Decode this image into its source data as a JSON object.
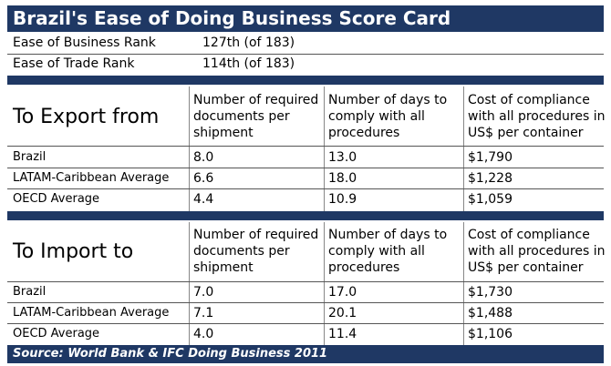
{
  "title": "Brazil's Ease of Doing Business Score Card",
  "ranks": [
    {
      "label": "Ease of Business Rank",
      "value": "127th (of 183)"
    },
    {
      "label": "Ease of Trade Rank",
      "value": "114th (of 183)"
    }
  ],
  "export": {
    "section_title": "To Export from",
    "columns": [
      "Number of required\ndocuments per\nshipment",
      "Number of days to\ncomply with all\nprocedures",
      "Cost of compliance\nwith all procedures in\nUS$ per container"
    ],
    "rows": [
      {
        "label": "Brazil",
        "docs": "8.0",
        "days": "13.0",
        "cost": "$1,790"
      },
      {
        "label": "LATAM-Caribbean Average",
        "docs": "6.6",
        "days": "18.0",
        "cost": "$1,228"
      },
      {
        "label": "OECD Average",
        "docs": "4.4",
        "days": "10.9",
        "cost": "$1,059"
      }
    ]
  },
  "import": {
    "section_title": "To Import to",
    "columns": [
      "Number of required\ndocuments per\nshipment",
      "Number of days to\ncomply with all\nprocedures",
      "Cost of compliance\nwith all procedures in\nUS$ per container"
    ],
    "rows": [
      {
        "label": "Brazil",
        "docs": "7.0",
        "days": "17.0",
        "cost": "$1,730"
      },
      {
        "label": "LATAM-Caribbean Average",
        "docs": "7.1",
        "days": "20.1",
        "cost": "$1,488"
      },
      {
        "label": "OECD Average",
        "docs": "4.0",
        "days": "11.4",
        "cost": "$1,106"
      }
    ]
  },
  "source": "Source: World Bank & IFC Doing Business 2011",
  "colors": {
    "header_bar": "#1f3864",
    "header_text": "#ffffff"
  }
}
